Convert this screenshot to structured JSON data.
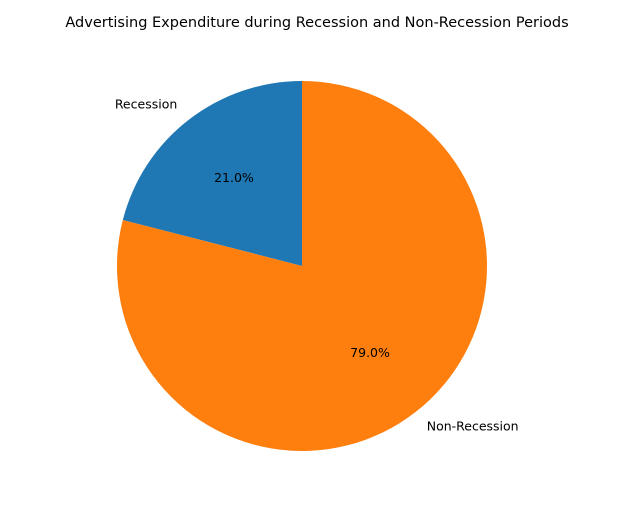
{
  "chart_data": {
    "type": "pie",
    "title": "Advertising Expenditure during Recession and Non-Recession Periods",
    "categories": [
      "Recession",
      "Non-Recession"
    ],
    "values": [
      21.0,
      79.0
    ],
    "percent_labels": [
      "21.0%",
      "79.0%"
    ],
    "colors": [
      "#1f77b4",
      "#ff7f0e"
    ],
    "start_angle_deg": 90,
    "direction": "counterclockwise",
    "legend": "none"
  }
}
